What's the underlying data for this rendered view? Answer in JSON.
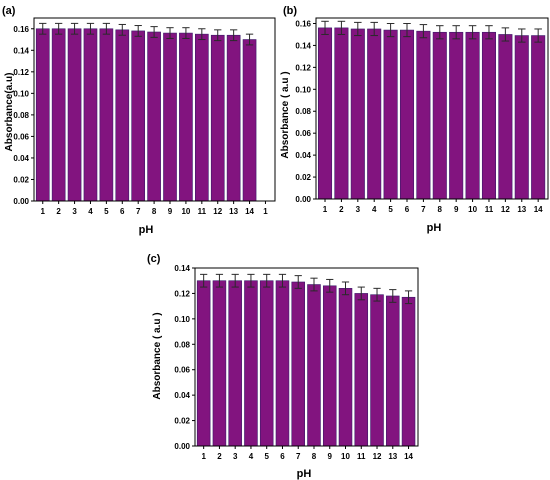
{
  "colors": {
    "bar_fill": "#82147f",
    "bar_edge": "#3a1a6a",
    "error_bar": "#2a2a2a",
    "axis": "#000000"
  },
  "chart_data": [
    {
      "panel_label": "(a)",
      "type": "bar",
      "categories": [
        "1",
        "2",
        "3",
        "4",
        "5",
        "6",
        "7",
        "8",
        "9",
        "10",
        "11",
        "12",
        "13",
        "14"
      ],
      "values": [
        0.16,
        0.16,
        0.16,
        0.16,
        0.16,
        0.159,
        0.158,
        0.157,
        0.156,
        0.156,
        0.155,
        0.154,
        0.154,
        0.15
      ],
      "errors": [
        0.005,
        0.005,
        0.005,
        0.005,
        0.005,
        0.005,
        0.005,
        0.005,
        0.005,
        0.005,
        0.005,
        0.005,
        0.005,
        0.005
      ],
      "xlabel": "pH",
      "ylabel": "Absorbance(a.u)",
      "ylim": [
        0,
        0.17
      ],
      "yticks": [
        "0.00",
        "0.02",
        "0.04",
        "0.06",
        "0.08",
        "0.10",
        "0.12",
        "0.14",
        "0.16"
      ],
      "extra_xtick": "1",
      "grid": false
    },
    {
      "panel_label": "(b)",
      "type": "bar",
      "categories": [
        "1",
        "2",
        "3",
        "4",
        "5",
        "6",
        "7",
        "8",
        "9",
        "10",
        "11",
        "12",
        "13",
        "14"
      ],
      "values": [
        0.156,
        0.156,
        0.155,
        0.155,
        0.154,
        0.154,
        0.153,
        0.152,
        0.152,
        0.152,
        0.152,
        0.15,
        0.149,
        0.149
      ],
      "errors": [
        0.006,
        0.006,
        0.006,
        0.006,
        0.006,
        0.006,
        0.006,
        0.006,
        0.006,
        0.006,
        0.006,
        0.006,
        0.006,
        0.006
      ],
      "xlabel": "pH",
      "ylabel": "Absorbance ( a.u )",
      "ylim": [
        0,
        0.165
      ],
      "yticks": [
        "0.00",
        "0.02",
        "0.04",
        "0.06",
        "0.08",
        "0.10",
        "0.12",
        "0.14",
        "0.16"
      ],
      "grid": false
    },
    {
      "panel_label": "(c)",
      "type": "bar",
      "categories": [
        "1",
        "2",
        "3",
        "4",
        "5",
        "6",
        "7",
        "8",
        "9",
        "10",
        "11",
        "12",
        "13",
        "14"
      ],
      "values": [
        0.13,
        0.13,
        0.13,
        0.13,
        0.13,
        0.13,
        0.129,
        0.127,
        0.126,
        0.124,
        0.12,
        0.119,
        0.118,
        0.117
      ],
      "errors": [
        0.005,
        0.005,
        0.005,
        0.005,
        0.005,
        0.005,
        0.005,
        0.005,
        0.005,
        0.005,
        0.005,
        0.005,
        0.005,
        0.005
      ],
      "xlabel": "pH",
      "ylabel": "Absorbance ( a.u )",
      "ylim": [
        0,
        0.14
      ],
      "yticks": [
        "0.00",
        "0.02",
        "0.04",
        "0.06",
        "0.08",
        "0.10",
        "0.12",
        "0.14"
      ],
      "grid": false
    }
  ]
}
